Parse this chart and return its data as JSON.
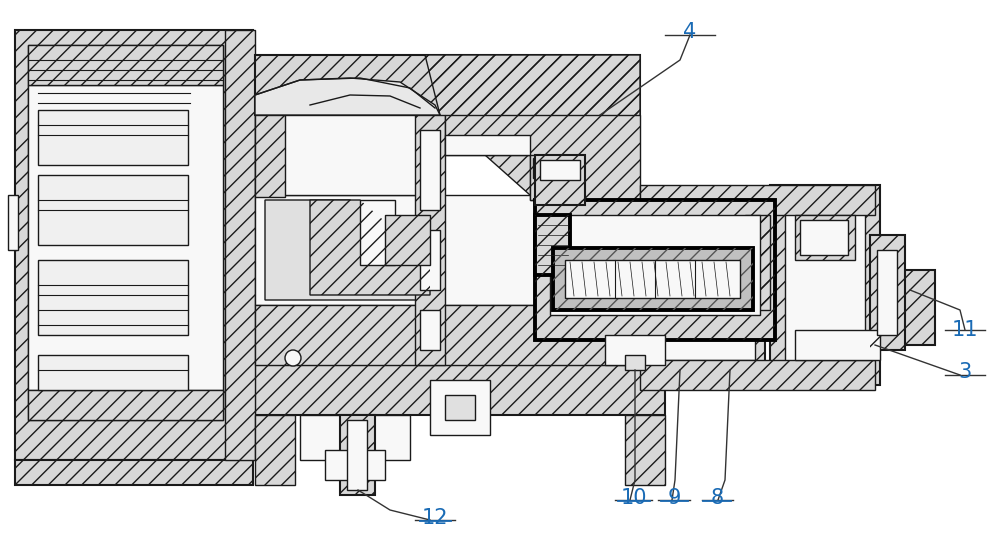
{
  "figure_width": 10.0,
  "figure_height": 5.46,
  "dpi": 100,
  "background_color": "#ffffff",
  "line_color": "#1a1a1a",
  "label_color": "#1a6bb5",
  "label_fontsize": 15,
  "border_lw": 1.2
}
